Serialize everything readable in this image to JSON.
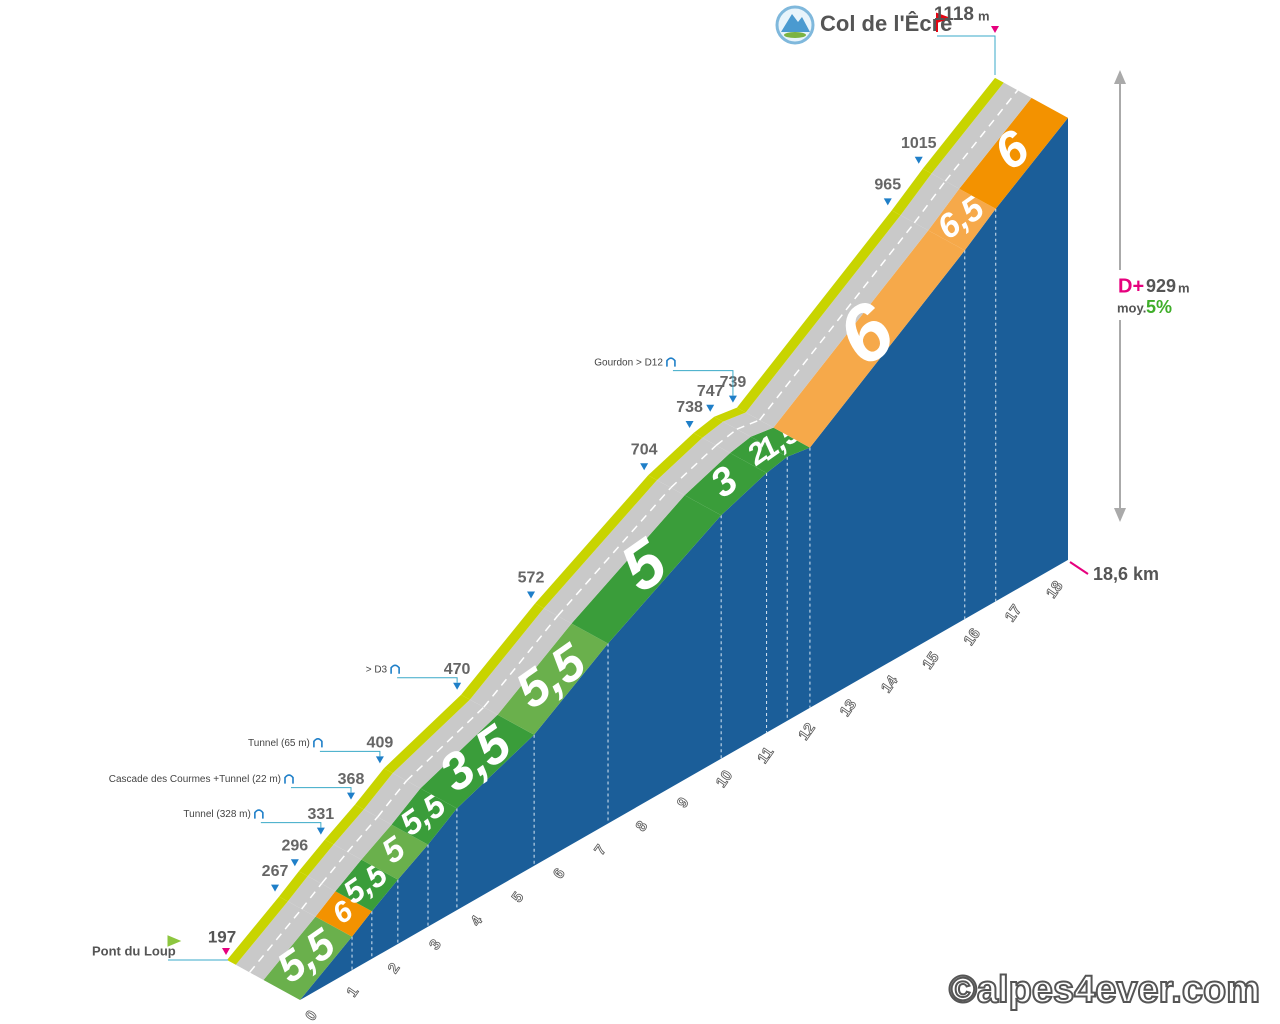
{
  "summit": {
    "name": "Col de l'Êcre",
    "elevation": "1118",
    "unit": "m"
  },
  "start": {
    "name": "Pont du Loup",
    "elevation": "197"
  },
  "markers": [
    {
      "elevation": "267"
    },
    {
      "elevation": "296"
    },
    {
      "elevation": "331",
      "note": "Tunnel (328 m)"
    },
    {
      "elevation": "368",
      "note": "Cascade des Courmes +Tunnel (22 m)"
    },
    {
      "elevation": "409",
      "note": "Tunnel (65 m)"
    },
    {
      "elevation": "470",
      "note": "> D3"
    },
    {
      "elevation": "572"
    },
    {
      "elevation": "704"
    },
    {
      "elevation": "738"
    },
    {
      "elevation": "747"
    },
    {
      "elevation": "739",
      "note": "Gourdon > D12"
    },
    {
      "elevation": "965"
    },
    {
      "elevation": "1015"
    }
  ],
  "segments": [
    {
      "gradient": "5,5",
      "color": "#6ab04c"
    },
    {
      "gradient": "6",
      "color": "#f39200"
    },
    {
      "gradient": "5,5",
      "color": "#3a9d3a"
    },
    {
      "gradient": "5",
      "color": "#6ab04c"
    },
    {
      "gradient": "5,5",
      "color": "#3a9d3a"
    },
    {
      "gradient": "3,5",
      "color": "#3a9d3a"
    },
    {
      "gradient": "5,5",
      "color": "#6ab04c"
    },
    {
      "gradient": "5",
      "color": "#3a9d3a"
    },
    {
      "gradient": "3",
      "color": "#3a9d3a"
    },
    {
      "gradient": "2",
      "color": "#3a9d3a"
    },
    {
      "gradient": "1,5",
      "color": "#3a9d3a"
    },
    {
      "gradient": "6",
      "color": "#f6a94a"
    },
    {
      "gradient": "6,5",
      "color": "#f6a94a"
    },
    {
      "gradient": "6",
      "color": "#f39200"
    }
  ],
  "km_ticks": [
    "0",
    "1",
    "2",
    "3",
    "4",
    "5",
    "6",
    "7",
    "8",
    "9",
    "10",
    "11",
    "12",
    "13",
    "14",
    "15",
    "16",
    "17",
    "18"
  ],
  "total_distance": "18,6 km",
  "climb": {
    "label": "D+",
    "value": "929",
    "unit": "m"
  },
  "average": {
    "label": "moy.",
    "value": "5%"
  },
  "copyright": "©alpes4ever.com"
}
